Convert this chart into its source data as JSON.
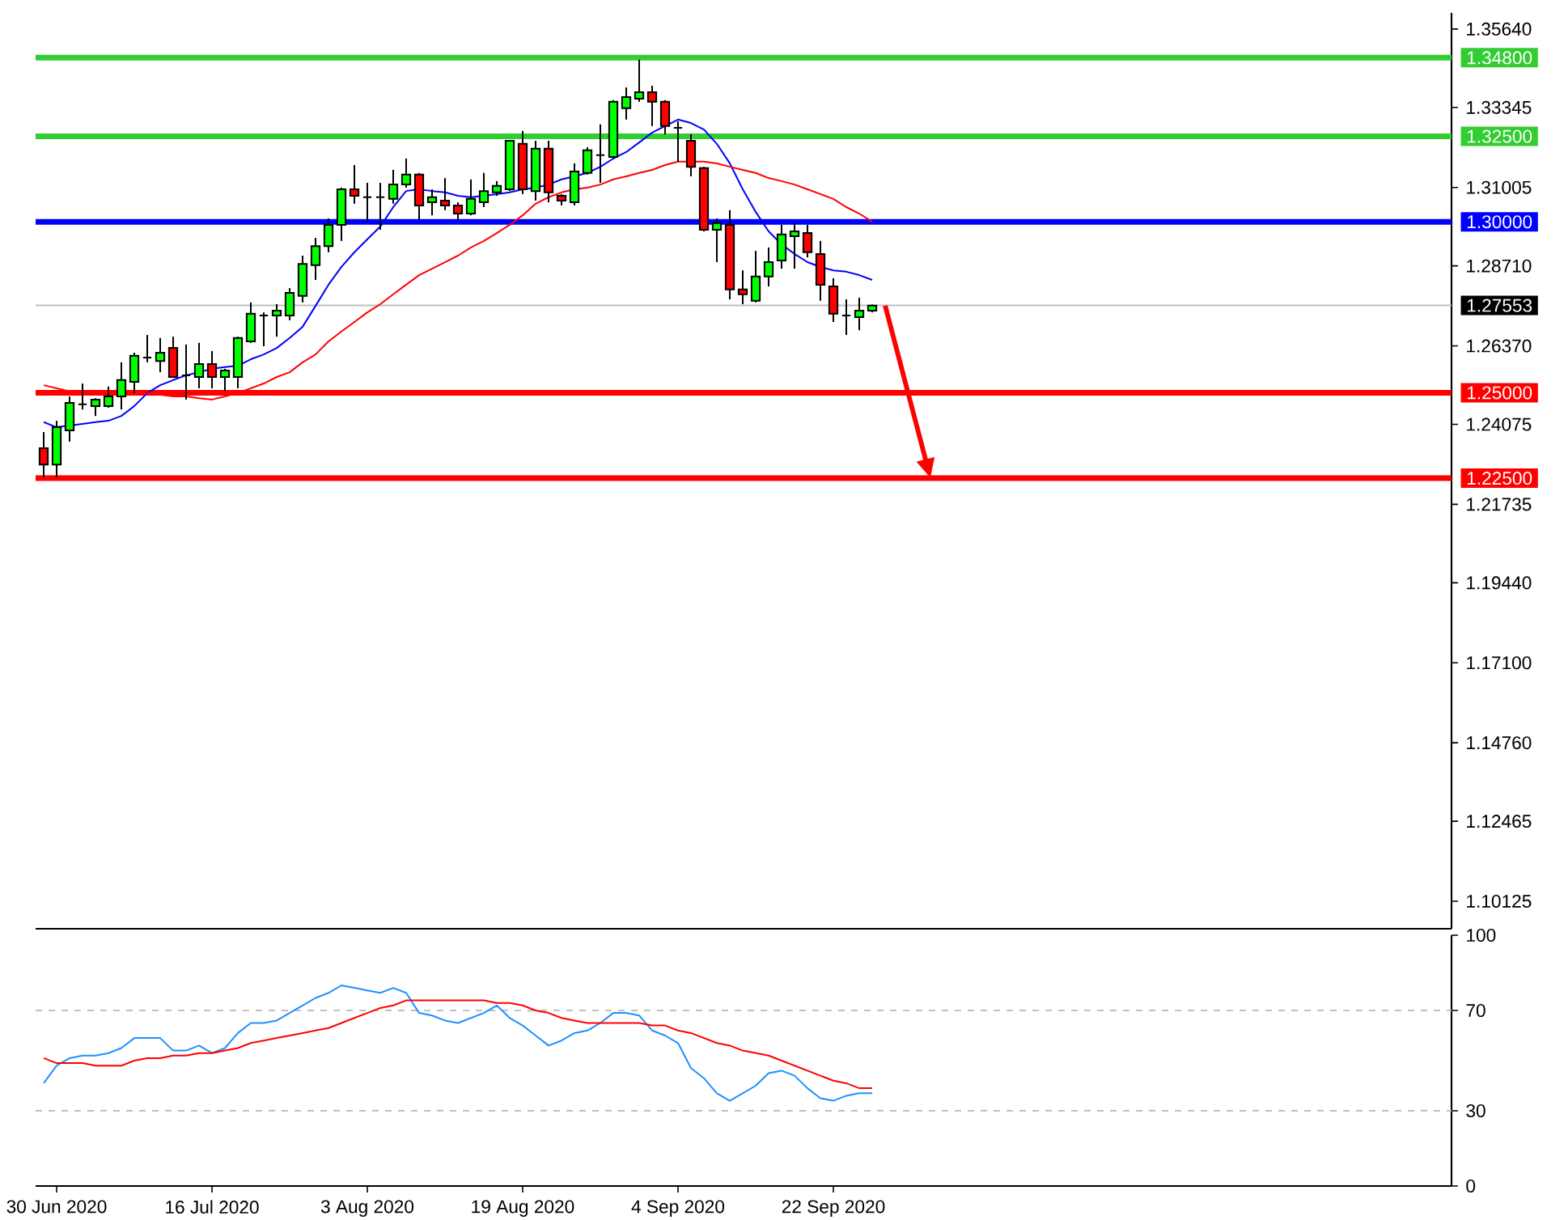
{
  "chart_data": [
    {
      "type": "candlestick",
      "categories": [
        null,
        null,
        null,
        null,
        null,
        null,
        null,
        null,
        null,
        null,
        null,
        null,
        null,
        null,
        null,
        null,
        null,
        null,
        null,
        null,
        null,
        null,
        null,
        null,
        null,
        null,
        null,
        null,
        null,
        null,
        null,
        null,
        null,
        null,
        null,
        null,
        null,
        null,
        null,
        null,
        null,
        null,
        null,
        null,
        null,
        null,
        null,
        null,
        null,
        null,
        null,
        null,
        null,
        null,
        null,
        null,
        null,
        null,
        null,
        null,
        null,
        null,
        null,
        null,
        null
      ],
      "ohlc": [
        [
          1.2338,
          1.2385,
          1.2253,
          1.229
        ],
        [
          1.229,
          1.2418,
          1.2253,
          1.2399
        ],
        [
          1.239,
          1.2489,
          1.2357,
          1.247
        ],
        [
          1.2466,
          1.2527,
          1.2451,
          1.2466
        ],
        [
          1.2461,
          1.2484,
          1.2432,
          1.248
        ],
        [
          1.2461,
          1.2518,
          1.2456,
          1.2489
        ],
        [
          1.2489,
          1.2589,
          1.2451,
          1.2537
        ],
        [
          1.2532,
          1.2617,
          1.2499,
          1.2608
        ],
        [
          1.2603,
          1.2669,
          1.2589,
          1.2603
        ],
        [
          1.2593,
          1.266,
          1.256,
          1.2617
        ],
        [
          1.2631,
          1.2664,
          1.2546,
          1.2546
        ],
        [
          1.2551,
          1.2641,
          1.248,
          1.2551
        ],
        [
          1.2546,
          1.2646,
          1.2513,
          1.2584
        ],
        [
          1.2584,
          1.2622,
          1.2513,
          1.2546
        ],
        [
          1.2546,
          1.257,
          1.2504,
          1.2565
        ],
        [
          1.2546,
          1.2664,
          1.2513,
          1.266
        ],
        [
          1.265,
          1.2764,
          1.2646,
          1.2731
        ],
        [
          1.2726,
          1.2735,
          1.2636,
          1.2726
        ],
        [
          1.2726,
          1.2759,
          1.2664,
          1.274
        ],
        [
          1.2726,
          1.2806,
          1.2712,
          1.2792
        ],
        [
          1.2783,
          1.2901,
          1.2764,
          1.2877
        ],
        [
          1.2873,
          1.2953,
          1.283,
          1.2929
        ],
        [
          1.2929,
          1.301,
          1.2911,
          1.2991
        ],
        [
          1.2991,
          1.31,
          1.2944,
          1.3095
        ],
        [
          1.3095,
          1.3166,
          1.3053,
          1.3076
        ],
        [
          1.3072,
          1.3114,
          1.3,
          1.3072
        ],
        [
          1.3072,
          1.3114,
          1.2977,
          1.3072
        ],
        [
          1.3067,
          1.3152,
          1.3053,
          1.3109
        ],
        [
          1.3109,
          1.3185,
          1.31,
          1.3138
        ],
        [
          1.3138,
          1.3143,
          1.3005,
          1.3048
        ],
        [
          1.3057,
          1.3095,
          1.3019,
          1.3072
        ],
        [
          1.3062,
          1.3128,
          1.3034,
          1.3048
        ],
        [
          1.3048,
          1.3057,
          1.3005,
          1.3024
        ],
        [
          1.3024,
          1.3124,
          1.3019,
          1.3067
        ],
        [
          1.3057,
          1.3143,
          1.3043,
          1.309
        ],
        [
          1.3086,
          1.3119,
          1.3076,
          1.3105
        ],
        [
          1.3095,
          1.3237,
          1.309,
          1.3237
        ],
        [
          1.3228,
          1.3266,
          1.3081,
          1.3095
        ],
        [
          1.309,
          1.3237,
          1.3062,
          1.3214
        ],
        [
          1.3214,
          1.3237,
          1.3057,
          1.3086
        ],
        [
          1.3076,
          1.3081,
          1.3048,
          1.3062
        ],
        [
          1.3057,
          1.3171,
          1.3048,
          1.3147
        ],
        [
          1.3143,
          1.3218,
          1.3138,
          1.3209
        ],
        [
          1.3195,
          1.3285,
          1.3114,
          1.3195
        ],
        [
          1.319,
          1.3356,
          1.3185,
          1.3351
        ],
        [
          1.3332,
          1.3393,
          1.3299,
          1.3365
        ],
        [
          1.336,
          1.3474,
          1.3351,
          1.3379
        ],
        [
          1.3379,
          1.3398,
          1.328,
          1.3351
        ],
        [
          1.3351,
          1.3356,
          1.3256,
          1.328
        ],
        [
          1.3275,
          1.3294,
          1.3176,
          1.3275
        ],
        [
          1.3237,
          1.3256,
          1.3133,
          1.3161
        ],
        [
          1.3157,
          1.3161,
          1.2972,
          1.2977
        ],
        [
          1.2977,
          1.301,
          1.2882,
          1.2996
        ],
        [
          1.2991,
          1.3034,
          1.2773,
          1.2802
        ],
        [
          1.2802,
          1.2858,
          1.2759,
          1.2788
        ],
        [
          1.2769,
          1.2915,
          1.2764,
          1.284
        ],
        [
          1.284,
          1.2925,
          1.2811,
          1.2882
        ],
        [
          1.2887,
          1.2991,
          1.2863,
          1.2963
        ],
        [
          1.2958,
          1.2996,
          1.2863,
          1.2972
        ],
        [
          1.2967,
          1.2991,
          1.2896,
          1.2911
        ],
        [
          1.2906,
          1.2944,
          1.2769,
          1.2816
        ],
        [
          1.2811,
          1.2835,
          1.2707,
          1.2731
        ],
        [
          1.2726,
          1.2773,
          1.2669,
          1.2726
        ],
        [
          1.2721,
          1.2778,
          1.2683,
          1.274
        ],
        [
          1.274,
          1.2758,
          1.2735,
          1.2755
        ]
      ],
      "colors": [
        "#ff0000",
        "#00ff00",
        "#00ff00",
        "#000000",
        "#00ff00",
        "#00ff00",
        "#00ff00",
        "#00ff00",
        "#000000",
        "#00ff00",
        "#ff0000",
        "#000000",
        "#00ff00",
        "#ff0000",
        "#00ff00",
        "#00ff00",
        "#00ff00",
        "#000000",
        "#00ff00",
        "#00ff00",
        "#00ff00",
        "#00ff00",
        "#00ff00",
        "#00ff00",
        "#ff0000",
        "#000000",
        "#000000",
        "#00ff00",
        "#00ff00",
        "#ff0000",
        "#00ff00",
        "#ff0000",
        "#ff0000",
        "#00ff00",
        "#00ff00",
        "#00ff00",
        "#00ff00",
        "#ff0000",
        "#00ff00",
        "#ff0000",
        "#ff0000",
        "#00ff00",
        "#00ff00",
        "#000000",
        "#00ff00",
        "#00ff00",
        "#00ff00",
        "#ff0000",
        "#ff0000",
        "#000000",
        "#ff0000",
        "#ff0000",
        "#00ff00",
        "#ff0000",
        "#ff0000",
        "#00ff00",
        "#00ff00",
        "#00ff00",
        "#00ff00",
        "#ff0000",
        "#ff0000",
        "#ff0000",
        "#000000",
        "#00ff00",
        "#00ff00"
      ],
      "series": [
        {
          "type": "line",
          "color": "#0000ff",
          "values": [
            1.2414,
            1.2399,
            1.2404,
            1.2409,
            1.2414,
            1.2418,
            1.2432,
            1.2461,
            1.2499,
            1.2522,
            1.2537,
            1.2551,
            1.256,
            1.257,
            1.2575,
            1.2579,
            1.2598,
            1.2612,
            1.2631,
            1.266,
            1.2693,
            1.2754,
            1.2816,
            1.2868,
            1.2911,
            1.2949,
            1.2986,
            1.3043,
            1.309,
            1.3095,
            1.309,
            1.3086,
            1.3076,
            1.3072,
            1.3076,
            1.3081,
            1.3086,
            1.3095,
            1.31,
            1.3109,
            1.3124,
            1.3133,
            1.3143,
            1.3161,
            1.3185,
            1.3204,
            1.3232,
            1.3261,
            1.328,
            1.3299,
            1.3289,
            1.327,
            1.3228,
            1.3171,
            1.3095,
            1.3029,
            1.2972,
            1.2934,
            1.2906,
            1.2882,
            1.2868,
            1.2858,
            1.2854,
            1.2844,
            1.283
          ]
        },
        {
          "type": "line",
          "color": "#ff0000",
          "values": [
            1.2522,
            1.2513,
            1.2504,
            1.2504,
            1.2499,
            1.2499,
            1.2499,
            1.2499,
            1.2499,
            1.2494,
            1.2489,
            1.2489,
            1.2484,
            1.248,
            1.2489,
            1.2499,
            1.2513,
            1.2527,
            1.2546,
            1.256,
            1.2589,
            1.2612,
            1.265,
            1.2679,
            1.2707,
            1.2735,
            1.2759,
            1.2788,
            1.2816,
            1.2844,
            1.2863,
            1.2882,
            1.2901,
            1.2925,
            1.2944,
            1.2967,
            1.2991,
            1.3019,
            1.3053,
            1.3072,
            1.3086,
            1.3095,
            1.31,
            1.3109,
            1.3124,
            1.3133,
            1.3143,
            1.3152,
            1.3166,
            1.3176,
            1.3176,
            1.3176,
            1.3171,
            1.3161,
            1.3152,
            1.3143,
            1.3128,
            1.3119,
            1.3109,
            1.3095,
            1.3081,
            1.3067,
            1.3043,
            1.3024,
            1.3
          ]
        }
      ],
      "ylim": [
        1.0932,
        1.3611
      ],
      "yticks": [
        {
          "value": 1.3564,
          "label": "1.35640"
        },
        {
          "value": 1.33345,
          "label": "1.33345"
        },
        {
          "value": 1.31005,
          "label": "1.31005"
        },
        {
          "value": 1.2871,
          "label": "1.28710"
        },
        {
          "value": 1.2637,
          "label": "1.26370"
        },
        {
          "value": 1.24075,
          "label": "1.24075"
        },
        {
          "value": 1.21735,
          "label": "1.21735"
        },
        {
          "value": 1.1944,
          "label": "1.19440"
        },
        {
          "value": 1.171,
          "label": "1.17100"
        },
        {
          "value": 1.1476,
          "label": "1.14760"
        },
        {
          "value": 1.12465,
          "label": "1.12465"
        },
        {
          "value": 1.10125,
          "label": "1.10125"
        }
      ],
      "ref_lines": [
        {
          "axis": "y",
          "value": 1.348,
          "label": "1.34800",
          "color": "#32cd32"
        },
        {
          "axis": "y",
          "value": 1.325,
          "label": "1.32500",
          "color": "#32cd32"
        },
        {
          "axis": "y",
          "value": 1.3,
          "label": "1.30000",
          "color": "#0000ff"
        },
        {
          "axis": "y",
          "value": 1.27553,
          "label": "1.27553",
          "color": "#c0c0c0"
        },
        {
          "axis": "y",
          "value": 1.25,
          "label": "1.25000",
          "color": "#ff0000"
        },
        {
          "axis": "y",
          "value": 1.225,
          "label": "1.22500",
          "color": "#ff0000"
        }
      ],
      "tick_labels": "y"
    },
    {
      "type": "line",
      "categories": [
        null,
        "30 Jun 2020",
        null,
        null,
        null,
        null,
        null,
        null,
        null,
        null,
        null,
        null,
        null,
        "16 Jul 2020",
        null,
        null,
        null,
        null,
        null,
        null,
        null,
        null,
        null,
        null,
        null,
        "3 Aug 2020",
        null,
        null,
        null,
        null,
        null,
        null,
        null,
        null,
        null,
        null,
        null,
        "19 Aug 2020",
        null,
        null,
        null,
        null,
        null,
        null,
        null,
        null,
        null,
        null,
        null,
        "4 Sep 2020",
        null,
        null,
        null,
        null,
        null,
        null,
        null,
        null,
        null,
        null,
        null,
        "22 Sep 2020",
        null,
        null,
        null
      ],
      "series": [
        {
          "color": "#1e90ff",
          "values": [
            41,
            48,
            51,
            52,
            52,
            53,
            55,
            59,
            59,
            59,
            54,
            54,
            56,
            53,
            55,
            61,
            65,
            65,
            66,
            69,
            72,
            75,
            77,
            80,
            79,
            78,
            77,
            79,
            77,
            69,
            68,
            66,
            65,
            67,
            69,
            72,
            67,
            64,
            60,
            56,
            58,
            61,
            62,
            65,
            69,
            69,
            68,
            62,
            60,
            57,
            47,
            43,
            37,
            34,
            37,
            40,
            45,
            46,
            44,
            39,
            35,
            34,
            36,
            37,
            37
          ]
        },
        {
          "color": "#ff0000",
          "values": [
            51,
            49,
            49,
            49,
            48,
            48,
            48,
            50,
            51,
            51,
            52,
            52,
            53,
            53,
            54,
            55,
            57,
            58,
            59,
            60,
            61,
            62,
            63,
            65,
            67,
            69,
            71,
            72,
            74,
            74,
            74,
            74,
            74,
            74,
            74,
            73,
            73,
            72,
            70,
            69,
            67,
            66,
            65,
            65,
            65,
            65,
            65,
            64,
            64,
            62,
            61,
            59,
            57,
            56,
            54,
            53,
            52,
            50,
            48,
            46,
            44,
            42,
            41,
            39,
            39
          ]
        }
      ],
      "ylim": [
        0,
        100
      ],
      "yticks": [
        0,
        30,
        70,
        100
      ],
      "ref_lines": [
        {
          "axis": "y",
          "value": 70,
          "color": "#c0c0c0",
          "line_style": "dashed"
        },
        {
          "axis": "y",
          "value": 30,
          "color": "#c0c0c0",
          "line_style": "dashed"
        }
      ]
    }
  ]
}
